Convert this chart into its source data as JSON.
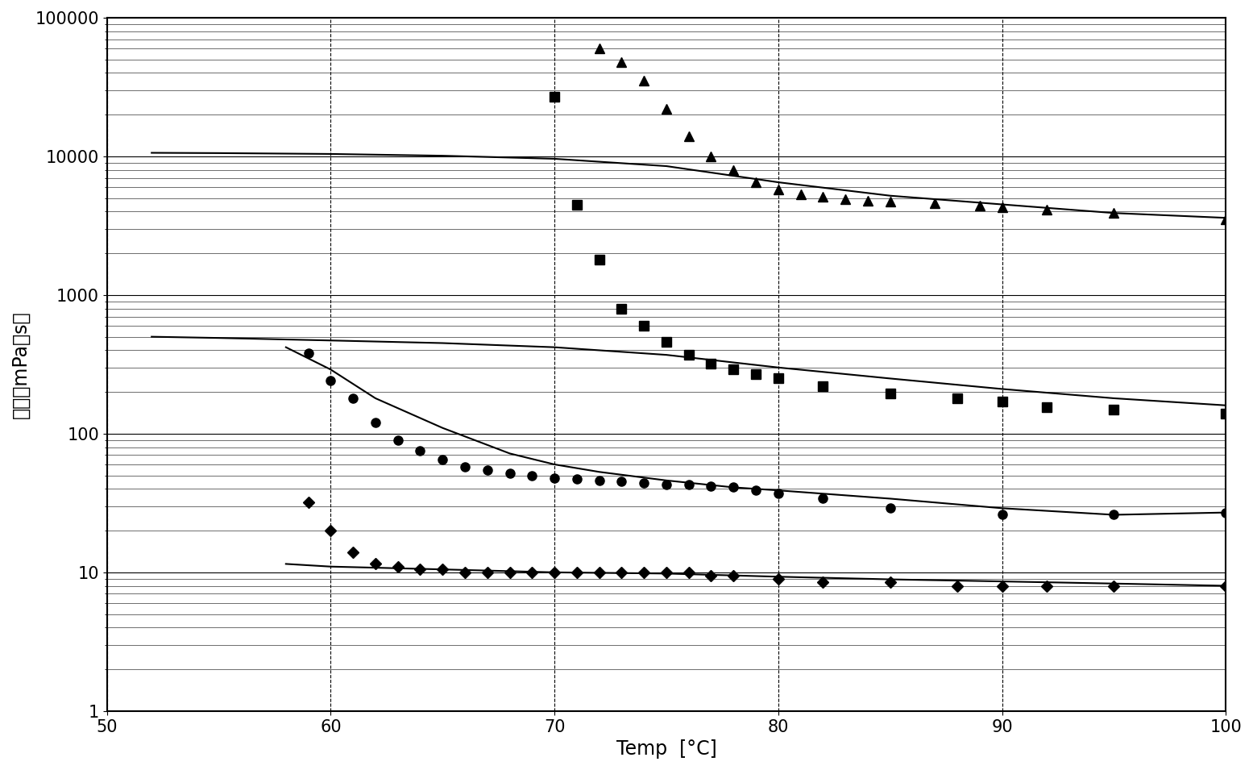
{
  "title": "",
  "xlabel": "Temp  [°C]",
  "ylabel": "粘度［mPaシs］",
  "xlim": [
    50,
    100
  ],
  "ylim_log": [
    1,
    100000
  ],
  "x_ticks": [
    50,
    60,
    70,
    80,
    90,
    100
  ],
  "background_color": "#ffffff",
  "series": {
    "triangle": {
      "marker": "^",
      "markersize": 9,
      "data_x": [
        72,
        73,
        74,
        75,
        76,
        77,
        78,
        79,
        80,
        81,
        82,
        83,
        84,
        85,
        87,
        89,
        90,
        92,
        95,
        100
      ],
      "data_y": [
        60000,
        48000,
        35000,
        22000,
        14000,
        10000,
        8000,
        6500,
        5800,
        5300,
        5100,
        4900,
        4800,
        4700,
        4600,
        4400,
        4300,
        4100,
        3900,
        3500
      ]
    },
    "square": {
      "marker": "s",
      "markersize": 9,
      "data_x": [
        70,
        71,
        72,
        73,
        74,
        75,
        76,
        77,
        78,
        79,
        80,
        82,
        85,
        88,
        90,
        92,
        95,
        100
      ],
      "data_y": [
        27000,
        4500,
        1800,
        800,
        600,
        460,
        370,
        320,
        290,
        270,
        250,
        220,
        195,
        180,
        170,
        155,
        150,
        140
      ]
    },
    "circle": {
      "marker": "o",
      "markersize": 8,
      "data_x": [
        59,
        60,
        61,
        62,
        63,
        64,
        65,
        66,
        67,
        68,
        69,
        70,
        71,
        72,
        73,
        74,
        75,
        76,
        77,
        78,
        79,
        80,
        82,
        85,
        90,
        95,
        100
      ],
      "data_y": [
        380,
        240,
        180,
        120,
        90,
        75,
        65,
        58,
        55,
        52,
        50,
        48,
        47,
        46,
        45,
        44,
        43,
        43,
        42,
        41,
        39,
        37,
        34,
        29,
        26,
        26,
        27
      ]
    },
    "diamond": {
      "marker": "D",
      "markersize": 7,
      "data_x": [
        59,
        60,
        61,
        62,
        63,
        64,
        65,
        66,
        67,
        68,
        69,
        70,
        71,
        72,
        73,
        74,
        75,
        76,
        77,
        78,
        80,
        82,
        85,
        88,
        90,
        92,
        95,
        100
      ],
      "data_y": [
        32,
        20,
        14,
        11.5,
        11,
        10.5,
        10.5,
        10,
        10,
        10,
        10,
        10,
        10,
        10,
        10,
        10,
        10,
        10,
        9.5,
        9.5,
        9,
        8.5,
        8.5,
        8,
        8,
        8,
        8,
        8
      ]
    }
  },
  "trend_lines": {
    "top_curve": {
      "x": [
        52,
        55,
        60,
        65,
        70,
        75,
        80,
        85,
        90,
        95,
        100
      ],
      "y": [
        10600,
        10550,
        10400,
        10100,
        9600,
        8500,
        6500,
        5200,
        4500,
        3900,
        3600
      ]
    },
    "middle_upper": {
      "x": [
        52,
        55,
        60,
        65,
        70,
        75,
        80,
        85,
        90,
        95,
        100
      ],
      "y": [
        500,
        490,
        470,
        450,
        420,
        370,
        300,
        250,
        210,
        180,
        160
      ]
    },
    "middle_lower": {
      "x": [
        58,
        60,
        62,
        65,
        68,
        70,
        72,
        75,
        78,
        80,
        85,
        90,
        95,
        100
      ],
      "y": [
        420,
        290,
        180,
        110,
        72,
        60,
        53,
        46,
        41,
        39,
        34,
        29,
        26,
        27
      ]
    },
    "bottom_curve": {
      "x": [
        58,
        60,
        62,
        65,
        70,
        75,
        80,
        85,
        90,
        95,
        100
      ],
      "y": [
        11.5,
        11,
        10.8,
        10.5,
        10,
        9.8,
        9.3,
        8.9,
        8.6,
        8.3,
        8.0
      ]
    }
  },
  "font_size_axis_label": 17,
  "font_size_tick": 15
}
